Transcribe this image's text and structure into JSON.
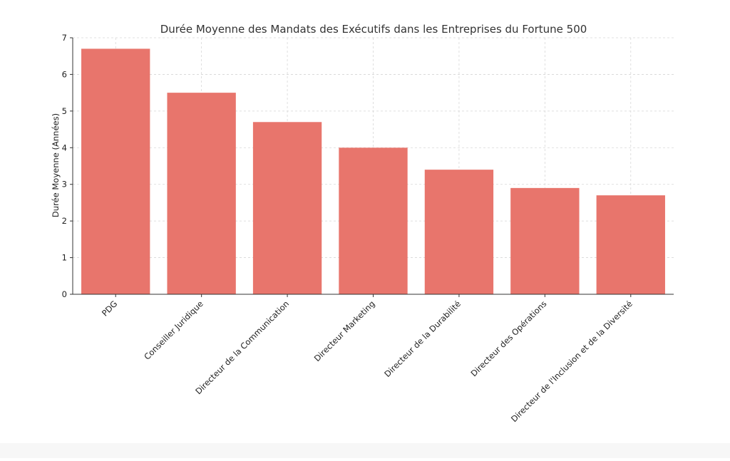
{
  "chart_data": {
    "type": "bar",
    "title": "Durée Moyenne des Mandats des Exécutifs dans les Entreprises du Fortune 500",
    "xlabel": "",
    "ylabel": "Durée Moyenne (Années)",
    "categories": [
      "PDG",
      "Conseiller Juridique",
      "Directeur de la Communication",
      "Directeur Marketing",
      "Directeur de la Durabilité",
      "Directeur des Opérations",
      "Directeur de l'Inclusion et de la Diversité"
    ],
    "values": [
      6.7,
      5.5,
      4.7,
      4.0,
      3.4,
      2.9,
      2.7
    ],
    "ylim": [
      0,
      7
    ],
    "yticks": [
      0,
      1,
      2,
      3,
      4,
      5,
      6,
      7
    ],
    "grid": true,
    "bar_color": "#e8756c"
  }
}
